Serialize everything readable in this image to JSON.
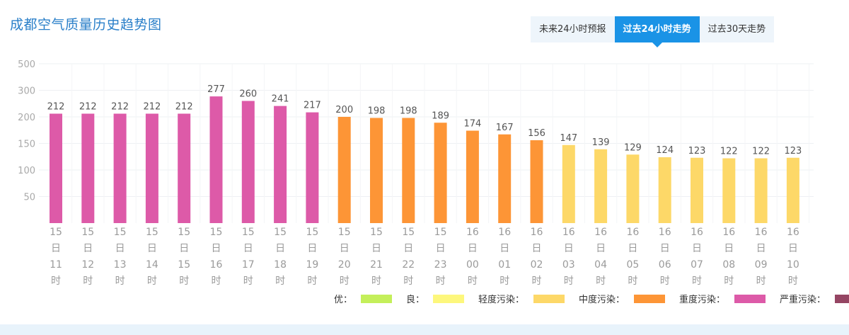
{
  "page": {
    "title": "成都空气质量历史趋势图",
    "tabs": [
      {
        "label": "未来24小时预报",
        "active": false
      },
      {
        "label": "过去24小时走势",
        "active": true
      },
      {
        "label": "过去30天走势",
        "active": false
      }
    ]
  },
  "colors": {
    "accent": "#1a93e6",
    "title": "#2a7fc9",
    "优": "#c4ef5a",
    "良": "#fdf77c",
    "轻度污染": "#fdd868",
    "中度污染": "#fd9536",
    "重度污染": "#dd5aa8",
    "严重污染": "#954563"
  },
  "chart_data": {
    "type": "bar",
    "categories": [
      [
        "15",
        "日",
        "11",
        "时"
      ],
      [
        "15",
        "日",
        "12",
        "时"
      ],
      [
        "15",
        "日",
        "13",
        "时"
      ],
      [
        "15",
        "日",
        "14",
        "时"
      ],
      [
        "15",
        "日",
        "15",
        "时"
      ],
      [
        "15",
        "日",
        "16",
        "时"
      ],
      [
        "15",
        "日",
        "17",
        "时"
      ],
      [
        "15",
        "日",
        "18",
        "时"
      ],
      [
        "15",
        "日",
        "19",
        "时"
      ],
      [
        "15",
        "日",
        "20",
        "时"
      ],
      [
        "15",
        "日",
        "21",
        "时"
      ],
      [
        "15",
        "日",
        "22",
        "时"
      ],
      [
        "15",
        "日",
        "23",
        "时"
      ],
      [
        "16",
        "日",
        "00",
        "时"
      ],
      [
        "16",
        "日",
        "01",
        "时"
      ],
      [
        "16",
        "日",
        "02",
        "时"
      ],
      [
        "16",
        "日",
        "03",
        "时"
      ],
      [
        "16",
        "日",
        "04",
        "时"
      ],
      [
        "16",
        "日",
        "05",
        "时"
      ],
      [
        "16",
        "日",
        "06",
        "时"
      ],
      [
        "16",
        "日",
        "07",
        "时"
      ],
      [
        "16",
        "日",
        "08",
        "时"
      ],
      [
        "16",
        "日",
        "09",
        "时"
      ],
      [
        "16",
        "日",
        "10",
        "时"
      ]
    ],
    "values": [
      212,
      212,
      212,
      212,
      212,
      277,
      260,
      241,
      217,
      200,
      198,
      198,
      189,
      174,
      167,
      156,
      147,
      139,
      129,
      124,
      123,
      122,
      122,
      123
    ],
    "levels": [
      "重度污染",
      "重度污染",
      "重度污染",
      "重度污染",
      "重度污染",
      "重度污染",
      "重度污染",
      "重度污染",
      "重度污染",
      "中度污染",
      "中度污染",
      "中度污染",
      "中度污染",
      "中度污染",
      "中度污染",
      "中度污染",
      "轻度污染",
      "轻度污染",
      "轻度污染",
      "轻度污染",
      "轻度污染",
      "轻度污染",
      "轻度污染",
      "轻度污染"
    ],
    "yticks": [
      50,
      100,
      150,
      200,
      300,
      500
    ],
    "ymap": [
      [
        0,
        0
      ],
      [
        200,
        200
      ],
      [
        300,
        250
      ],
      [
        500,
        300
      ]
    ],
    "ylim": [
      0,
      500
    ],
    "grid": true,
    "legend": {
      "placement": "bottom-right",
      "items": [
        {
          "label": "优：",
          "level": "优"
        },
        {
          "label": "良：",
          "level": "良"
        },
        {
          "label": "轻度污染：",
          "level": "轻度污染"
        },
        {
          "label": "中度污染：",
          "level": "中度污染"
        },
        {
          "label": "重度污染：",
          "level": "重度污染"
        },
        {
          "label": "严重污染：",
          "level": "严重污染"
        }
      ]
    }
  }
}
